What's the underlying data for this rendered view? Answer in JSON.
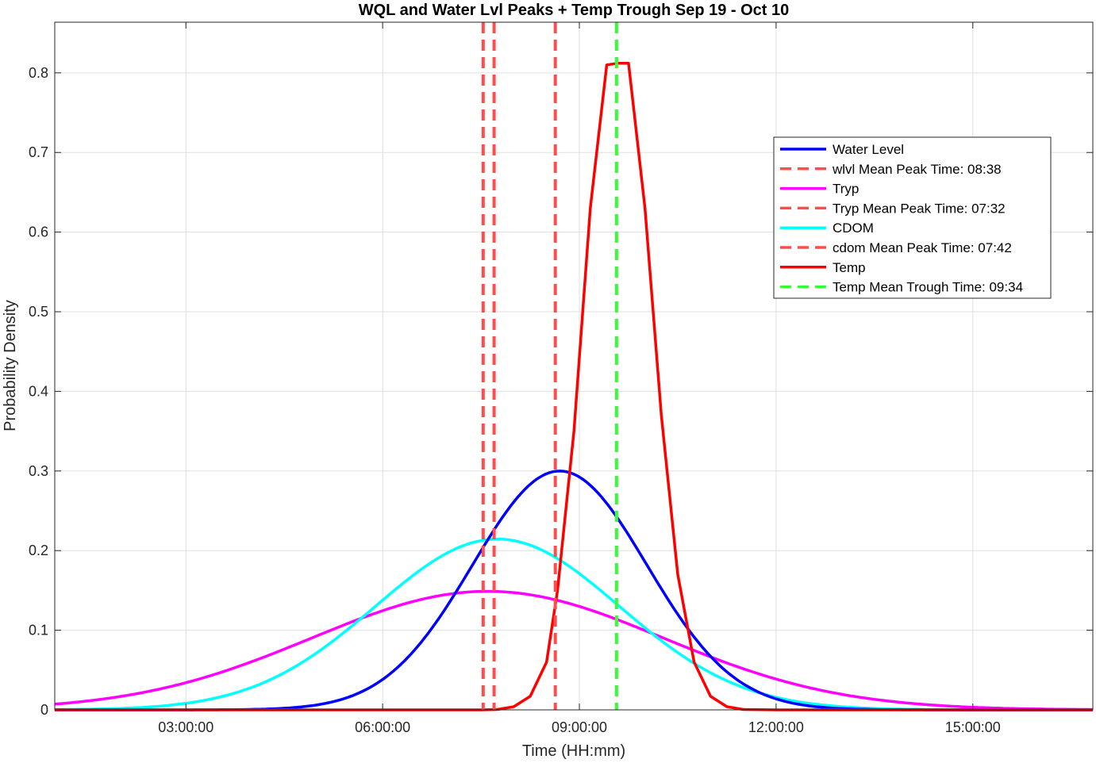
{
  "chart_data": {
    "type": "line",
    "title": "WQL and Water Lvl Peaks + Temp Trough Sep 19 - Oct 10",
    "xlabel": "Time (HH:mm)",
    "ylabel": "Probability Density",
    "xlim_hours": [
      1.0,
      16.83
    ],
    "ylim": [
      0,
      0.8636
    ],
    "grid": true,
    "legend_position": "top-right",
    "x_ticks": [
      {
        "value": 3,
        "label": "03:00:00"
      },
      {
        "value": 6,
        "label": "06:00:00"
      },
      {
        "value": 9,
        "label": "09:00:00"
      },
      {
        "value": 12,
        "label": "12:00:00"
      },
      {
        "value": 15,
        "label": "15:00:00"
      }
    ],
    "y_ticks": [
      {
        "value": 0,
        "label": "0"
      },
      {
        "value": 0.1,
        "label": "0.1"
      },
      {
        "value": 0.2,
        "label": "0.2"
      },
      {
        "value": 0.3,
        "label": "0.3"
      },
      {
        "value": 0.4,
        "label": "0.4"
      },
      {
        "value": 0.5,
        "label": "0.5"
      },
      {
        "value": 0.6,
        "label": "0.6"
      },
      {
        "value": 0.7,
        "label": "0.7"
      },
      {
        "value": 0.8,
        "label": "0.8"
      }
    ],
    "series": [
      {
        "name": "Water Level",
        "color": "#0000ff",
        "style": "solid",
        "kind": "gaussian",
        "mean": 8.7,
        "sd": 1.33
      },
      {
        "name": "wlvl Mean Peak Time: 08:38",
        "color": "#ff4c4c",
        "style": "dashed",
        "kind": "vline",
        "x": 8.633
      },
      {
        "name": "Tryp",
        "color": "#ff00ff",
        "style": "solid",
        "kind": "gaussian",
        "mean": 7.6,
        "sd": 2.68
      },
      {
        "name": "Tryp Mean Peak Time: 07:32",
        "color": "#ff4c4c",
        "style": "dashed",
        "kind": "vline",
        "x": 7.533
      },
      {
        "name": "CDOM",
        "color": "#00ffff",
        "style": "solid",
        "kind": "gaussian",
        "mean": 7.75,
        "sd": 1.86
      },
      {
        "name": "cdom Mean Peak Time: 07:42",
        "color": "#ff4c4c",
        "style": "dashed",
        "kind": "vline",
        "x": 7.7
      },
      {
        "name": "Temp",
        "color": "#ff0000",
        "style": "solid",
        "kind": "points",
        "x": [
          1.0,
          7.5,
          7.75,
          8.0,
          8.25,
          8.5,
          8.667,
          8.917,
          9.167,
          9.417,
          9.583,
          9.75,
          10.0,
          10.25,
          10.5,
          10.75,
          11.0,
          11.25,
          11.5,
          12.0,
          16.83
        ],
        "y": [
          0,
          0,
          0.0005,
          0.004,
          0.017,
          0.06,
          0.15,
          0.35,
          0.63,
          0.81,
          0.812,
          0.812,
          0.63,
          0.37,
          0.17,
          0.06,
          0.017,
          0.004,
          0.0005,
          0,
          0
        ]
      },
      {
        "name": "Temp Mean Trough Time: 09:34",
        "color": "#33ff33",
        "style": "dashed",
        "kind": "vline",
        "x": 9.567
      }
    ]
  }
}
